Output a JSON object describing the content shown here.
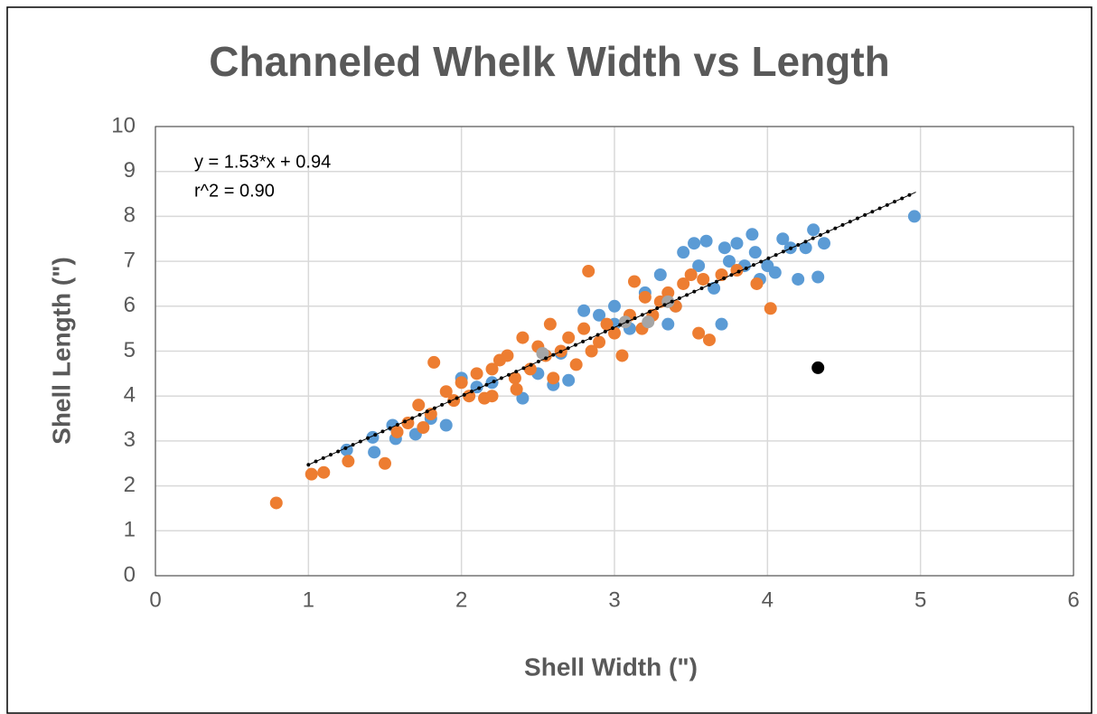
{
  "chart_data": {
    "type": "scatter",
    "title": "Channeled Whelk Width vs Length",
    "xlabel": "Shell Width (\")",
    "ylabel": "Shell Length (\")",
    "annotations": [
      "y = 1.53*x + 0.94",
      "r^2 = 0.90"
    ],
    "xlim": [
      0,
      6
    ],
    "xticks": [
      0,
      1,
      2,
      3,
      4,
      5,
      6
    ],
    "ylim": [
      0,
      10
    ],
    "yticks": [
      0,
      1,
      2,
      3,
      4,
      5,
      6,
      7,
      8,
      9,
      10
    ],
    "grid": true,
    "series": [
      {
        "color": "#5b9bd5",
        "x": [
          1.25,
          1.42,
          1.43,
          1.55,
          1.57,
          1.7,
          1.8,
          1.9,
          2.0,
          2.1,
          2.2,
          2.4,
          2.5,
          2.6,
          2.7,
          2.8,
          2.9,
          3.0,
          3.1,
          3.2,
          3.3,
          3.35,
          3.4,
          3.45,
          3.52,
          3.55,
          3.6,
          3.65,
          3.7,
          3.72,
          3.75,
          3.8,
          3.85,
          3.9,
          3.92,
          3.95,
          4.0,
          4.05,
          4.1,
          4.15,
          4.2,
          4.25,
          4.3,
          4.33,
          4.37,
          4.96,
          3.0,
          2.65
        ],
        "values": [
          2.8,
          3.08,
          2.75,
          3.35,
          3.05,
          3.15,
          3.5,
          3.35,
          4.4,
          4.2,
          4.3,
          3.95,
          4.5,
          4.25,
          4.35,
          5.9,
          5.8,
          5.6,
          5.5,
          6.3,
          6.7,
          5.6,
          6.0,
          7.2,
          7.4,
          6.9,
          7.45,
          6.4,
          5.6,
          7.3,
          7.0,
          7.4,
          6.9,
          7.6,
          7.2,
          6.6,
          6.9,
          6.75,
          7.5,
          7.3,
          6.6,
          7.3,
          7.7,
          6.65,
          7.4,
          8.0,
          6.0,
          4.95
        ]
      },
      {
        "color": "#ed7d31",
        "x": [
          0.79,
          1.02,
          1.1,
          1.26,
          1.5,
          1.58,
          1.65,
          1.72,
          1.8,
          1.82,
          1.9,
          1.95,
          2.0,
          2.05,
          2.1,
          2.15,
          2.2,
          2.25,
          2.3,
          2.35,
          2.4,
          2.45,
          2.5,
          2.55,
          2.58,
          2.6,
          2.65,
          2.7,
          2.75,
          2.8,
          2.83,
          2.85,
          2.9,
          2.95,
          3.0,
          3.05,
          3.1,
          3.13,
          3.18,
          3.2,
          3.25,
          3.3,
          3.35,
          3.4,
          3.45,
          3.5,
          3.55,
          3.58,
          3.62,
          3.7,
          3.8,
          3.93,
          4.02,
          2.36,
          2.2,
          1.75
        ],
        "values": [
          1.62,
          2.26,
          2.3,
          2.55,
          2.5,
          3.2,
          3.4,
          3.8,
          3.6,
          4.75,
          4.1,
          3.9,
          4.3,
          4.0,
          4.5,
          3.95,
          4.6,
          4.8,
          4.9,
          4.4,
          5.3,
          4.6,
          5.1,
          4.9,
          5.6,
          4.4,
          5.0,
          5.3,
          4.7,
          5.5,
          6.78,
          5.0,
          5.2,
          5.6,
          5.4,
          4.9,
          5.8,
          6.55,
          5.5,
          6.2,
          5.8,
          6.1,
          6.3,
          6.0,
          6.5,
          6.7,
          5.4,
          6.6,
          5.25,
          6.7,
          6.8,
          6.5,
          5.95,
          4.15,
          4.0,
          3.3
        ]
      },
      {
        "color": "#a5a5a5",
        "x": [
          2.53,
          3.07,
          3.22,
          3.35
        ],
        "values": [
          4.95,
          5.65,
          5.65,
          6.1
        ]
      },
      {
        "color": "#000000",
        "x": [
          4.33
        ],
        "values": [
          4.63
        ]
      }
    ],
    "trendline": {
      "color": "#000000",
      "x": [
        1,
        4.97
      ],
      "values": [
        2.47,
        8.54
      ]
    }
  }
}
